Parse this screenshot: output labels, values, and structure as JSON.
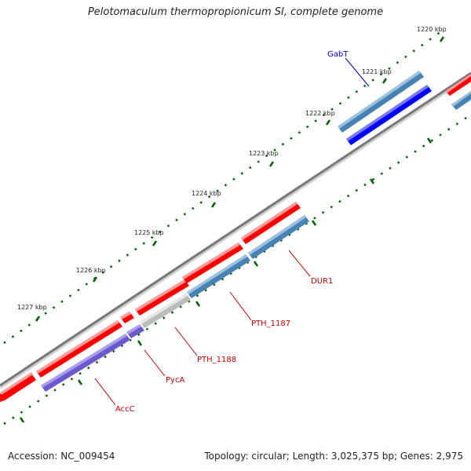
{
  "title": "Pelotomaculum thermopropionicum SI, complete genome",
  "footer": {
    "accession": "Accession: NC_009454",
    "info": "Topology: circular; Length: 3,025,375 bp; Genes: 2,975"
  },
  "ticks": [
    {
      "label": "1220 kbp"
    },
    {
      "label": "1221 kbp"
    },
    {
      "label": "1222 kbp"
    },
    {
      "label": "1223 kbp"
    },
    {
      "label": "1224 kbp"
    },
    {
      "label": "1225 kbp"
    },
    {
      "label": "1226 kbp"
    },
    {
      "label": "1227 kbp"
    }
  ],
  "gene_labels": [
    {
      "name": "GabT",
      "color": "#0000cc"
    },
    {
      "name": "DUR1",
      "color": "#cc0000"
    },
    {
      "name": "PTH_1187",
      "color": "#cc0000"
    },
    {
      "name": "PTH_1188",
      "color": "#cc0000"
    },
    {
      "name": "PycA",
      "color": "#cc0000"
    },
    {
      "name": "AccC",
      "color": "#cc0000"
    }
  ],
  "colors": {
    "forward_gene": "#ff0000",
    "reverse_gene": "#4682b4",
    "selected_gene": "#0000ff",
    "purple_gene": "#6a5acd",
    "grey_gene": "#bbbbbb",
    "backbone": "#777777",
    "tick": "#006400"
  }
}
